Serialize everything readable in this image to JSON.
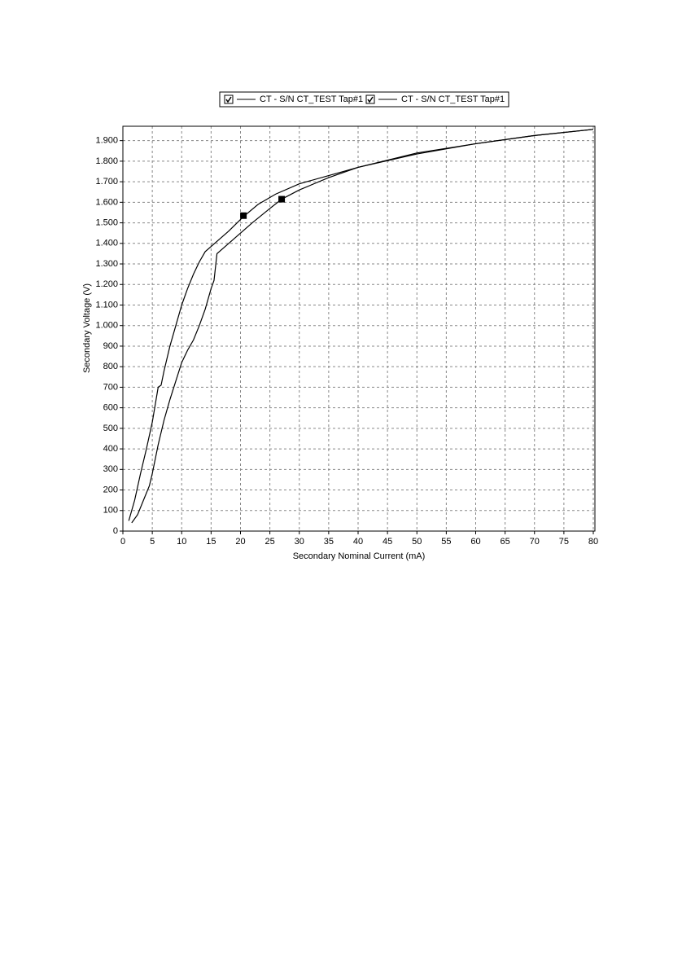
{
  "chart_data": {
    "type": "line",
    "x_label": "Secondary Nominal Current (mA)",
    "y_label": "Secondary Voltage (V)",
    "xlim": [
      0,
      80
    ],
    "ylim": [
      0,
      1970
    ],
    "grid": true,
    "legend": "top",
    "xticks": [
      0,
      5,
      10,
      15,
      20,
      25,
      30,
      35,
      40,
      45,
      50,
      55,
      60,
      65,
      70,
      75,
      80
    ],
    "yticks": [
      0,
      100,
      200,
      300,
      400,
      500,
      600,
      700,
      800,
      900,
      {
        "value": 1000,
        "label": "1.000"
      },
      {
        "value": 1100,
        "label": "1.100"
      },
      {
        "value": 1200,
        "label": "1.200"
      },
      {
        "value": 1300,
        "label": "1.300"
      },
      {
        "value": 1400,
        "label": "1.400"
      },
      {
        "value": 1500,
        "label": "1.500"
      },
      {
        "value": 1600,
        "label": "1.600"
      },
      {
        "value": 1700,
        "label": "1.700"
      },
      {
        "value": 1800,
        "label": "1.800"
      },
      {
        "value": 1900,
        "label": "1.900"
      }
    ],
    "series": [
      {
        "name": "CT - S/N CT_TEST Tap#1",
        "color": "#000000",
        "x": [
          1,
          2,
          3,
          4,
          5,
          6,
          6.5,
          7,
          8,
          9,
          10,
          11,
          12,
          13,
          14,
          16,
          18,
          20.5,
          23,
          26,
          30,
          35,
          40,
          50,
          60,
          70,
          80
        ],
        "values": [
          50,
          150,
          280,
          400,
          530,
          700,
          710,
          780,
          900,
          1000,
          1100,
          1180,
          1250,
          1310,
          1360,
          1410,
          1460,
          1530,
          1590,
          1640,
          1690,
          1730,
          1770,
          1835,
          1885,
          1925,
          1955
        ],
        "marker": {
          "x": 20.5,
          "y": 1535
        }
      },
      {
        "name": "CT - S/N CT_TEST Tap#1",
        "color": "#000000",
        "x": [
          1.5,
          2.5,
          3.5,
          4.5,
          5,
          6,
          7,
          8,
          9,
          10,
          11,
          12,
          13,
          14,
          15,
          15.5,
          16,
          18,
          20,
          22,
          25,
          27,
          30,
          35,
          40,
          50,
          60,
          70,
          80
        ],
        "values": [
          40,
          80,
          150,
          220,
          280,
          420,
          540,
          640,
          730,
          820,
          880,
          930,
          1000,
          1080,
          1180,
          1220,
          1350,
          1400,
          1450,
          1500,
          1570,
          1615,
          1660,
          1720,
          1770,
          1840,
          1885,
          1925,
          1955
        ],
        "marker": {
          "x": 27,
          "y": 1615
        }
      }
    ]
  }
}
